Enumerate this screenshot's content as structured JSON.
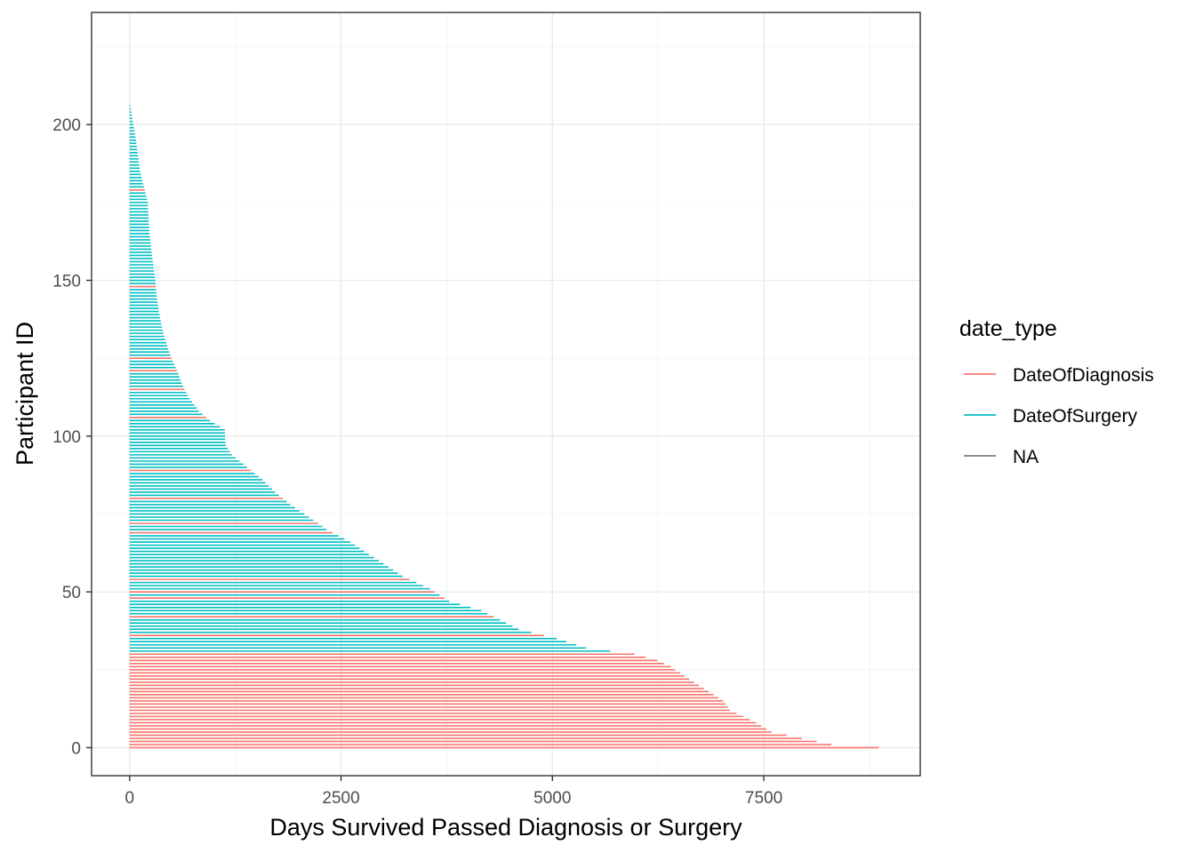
{
  "chart_data": {
    "type": "bar",
    "orientation": "horizontal",
    "xlabel": "Days Survived Passed Diagnosis or Surgery",
    "ylabel": "Participant ID",
    "xlim": [
      -450,
      9350
    ],
    "ylim": [
      -9,
      236
    ],
    "xticks": [
      0,
      2500,
      5000,
      7500
    ],
    "yticks": [
      0,
      50,
      100,
      150,
      200
    ],
    "grid": true,
    "legend": {
      "title": "date_type",
      "position": "right",
      "entries": [
        {
          "name": "DateOfDiagnosis",
          "color": "#F8766D"
        },
        {
          "name": "DateOfSurgery",
          "color": "#00BFC4"
        },
        {
          "name": "NA",
          "color": "#7F7F7F"
        }
      ]
    },
    "surgery_ids": [
      31,
      32,
      33,
      34,
      35,
      37,
      38,
      39,
      40,
      41,
      43,
      44,
      45,
      46,
      47,
      49,
      51,
      52,
      53,
      55,
      56,
      57,
      58,
      59,
      60,
      61,
      62,
      63,
      64,
      65,
      66,
      67,
      68,
      70,
      71,
      73,
      74,
      75,
      76,
      77,
      78,
      79,
      81,
      82,
      83,
      84,
      85,
      86,
      87,
      88,
      90,
      91,
      92,
      93,
      94,
      95,
      96,
      97,
      98,
      99,
      100,
      101,
      102,
      103,
      104,
      105,
      107,
      108,
      109,
      110,
      111,
      112,
      113,
      114,
      116,
      117,
      118,
      119,
      120,
      122,
      123,
      124,
      126,
      127,
      128,
      129,
      130,
      131,
      132,
      133,
      134,
      135,
      136,
      137,
      138,
      139,
      140,
      141,
      142,
      143,
      144,
      145,
      146,
      147,
      149,
      150,
      151,
      152,
      153,
      154,
      155,
      156,
      157,
      158,
      159,
      160,
      161,
      162,
      163,
      164,
      165,
      166,
      167,
      168,
      169,
      170,
      171,
      172,
      173,
      174,
      175,
      176,
      177,
      178,
      180,
      181,
      182,
      183,
      184,
      185,
      186,
      187,
      188,
      189,
      190,
      191,
      192,
      193,
      194,
      195,
      196,
      197,
      198,
      199,
      200,
      201,
      202,
      203,
      204,
      205,
      206
    ]
  }
}
